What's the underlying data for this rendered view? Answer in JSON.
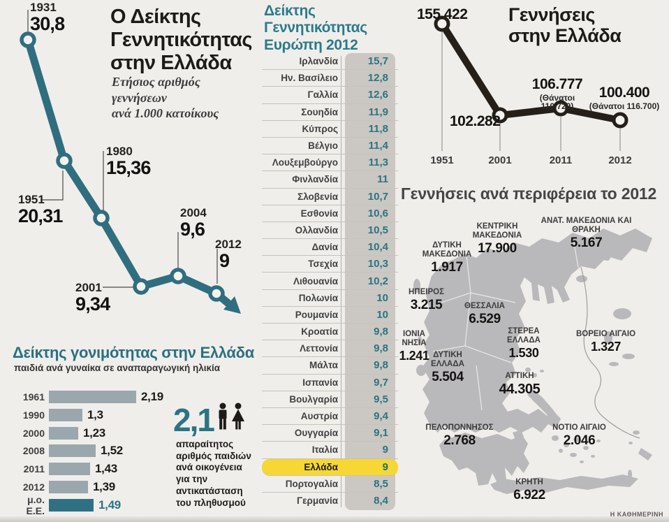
{
  "page": {
    "credit": "Η ΚΑΘΗΜΕΡΙΝΗ"
  },
  "colors": {
    "teal": "#2f6e7f",
    "teal_text": "#2a7484",
    "black_line": "#242019",
    "map_gray": "#b9b9bb",
    "highlight_yellow": "#f6d733",
    "background": "#f0eeeb"
  },
  "birth_rate_chart": {
    "title_lines": [
      "Ο Δείκτης",
      "Γεννητικότητας",
      "στην Ελλάδα"
    ],
    "subtitle_lines": [
      "Ετήσιος αριθμός",
      "γεννήσεων",
      "ανά 1.000 κατοίκους"
    ],
    "points": [
      {
        "year": "1931",
        "value": "30,8"
      },
      {
        "year": "1951",
        "value": "20,31"
      },
      {
        "year": "1980",
        "value": "15,36"
      },
      {
        "year": "2001",
        "value": "9,34"
      },
      {
        "year": "2004",
        "value": "9,6"
      },
      {
        "year": "2012",
        "value": "9"
      }
    ]
  },
  "europe_table": {
    "title_lines": [
      "Δείκτης",
      "Γεννητικότητας",
      "Ευρώπη 2012"
    ],
    "rows": [
      {
        "country": "Ιρλανδία",
        "value": "15,7"
      },
      {
        "country": "Ην. Βασίλειο",
        "value": "12,8"
      },
      {
        "country": "Γαλλία",
        "value": "12,6"
      },
      {
        "country": "Σουηδία",
        "value": "11,9"
      },
      {
        "country": "Κύπρος",
        "value": "11,8"
      },
      {
        "country": "Βέλγιο",
        "value": "11,4"
      },
      {
        "country": "Λουξεμβούργο",
        "value": "11,3"
      },
      {
        "country": "Φινλανδία",
        "value": "11"
      },
      {
        "country": "Σλοβενία",
        "value": "10,7"
      },
      {
        "country": "Εσθονία",
        "value": "10,6"
      },
      {
        "country": "Ολλανδία",
        "value": "10,5"
      },
      {
        "country": "Δανία",
        "value": "10,4"
      },
      {
        "country": "Τσεχία",
        "value": "10,3"
      },
      {
        "country": "Λιθουανία",
        "value": "10,2"
      },
      {
        "country": "Πολωνία",
        "value": "10"
      },
      {
        "country": "Ρουμανία",
        "value": "10"
      },
      {
        "country": "Κροατία",
        "value": "9,8"
      },
      {
        "country": "Λεττονία",
        "value": "9,8"
      },
      {
        "country": "Μάλτα",
        "value": "9,8"
      },
      {
        "country": "Ισπανία",
        "value": "9,7"
      },
      {
        "country": "Βουλγαρία",
        "value": "9,5"
      },
      {
        "country": "Αυστρία",
        "value": "9,4"
      },
      {
        "country": "Ουγγαρία",
        "value": "9,1"
      },
      {
        "country": "Ιταλία",
        "value": "9"
      },
      {
        "country": "Ελλάδα",
        "value": "9",
        "highlight": true
      },
      {
        "country": "Πορτογαλία",
        "value": "8,5"
      },
      {
        "country": "Γερμανία",
        "value": "8,4"
      }
    ]
  },
  "births_chart": {
    "title_lines": [
      "Γεννήσεις",
      "στην Ελλάδα"
    ],
    "points": [
      {
        "year": "1951",
        "value": "155.422",
        "note": ""
      },
      {
        "year": "2001",
        "value": "102.282",
        "note": ""
      },
      {
        "year": "2011",
        "value": "106.777",
        "note": "(Θάνατοι 110.729)"
      },
      {
        "year": "2012",
        "value": "100.400",
        "note": "(Θάνατοι 116.700)"
      }
    ]
  },
  "region_map": {
    "title": "Γεννήσεις ανά περιφέρεια το 2012",
    "regions": [
      {
        "name": "ΚΕΝΤΡΙΚΗ ΜΑΚΕΔΟΝΙΑ",
        "value": "17.900"
      },
      {
        "name": "ΑΝΑΤ. ΜΑΚΕΔΟΝΙΑ ΚΑΙ ΘΡΑΚΗ",
        "value": "5.167"
      },
      {
        "name": "ΔΥΤΙΚΗ ΜΑΚΕΔΟΝΙΑ",
        "value": "1.917"
      },
      {
        "name": "ΗΠΕΙΡΟΣ",
        "value": "3.215"
      },
      {
        "name": "ΘΕΣΣΑΛΙΑ",
        "value": "6.529"
      },
      {
        "name": "ΙΟΝΙΑ ΝΗΣΙΑ",
        "value": "1.241"
      },
      {
        "name": "ΔΥΤΙΚΗ ΕΛΛΑΔΑ",
        "value": "5.504"
      },
      {
        "name": "ΣΤΕΡΕΑ ΕΛΛΑΔΑ",
        "value": "1.530"
      },
      {
        "name": "ΒΟΡΕΙΟ ΑΙΓΑΙΟ",
        "value": "1.327"
      },
      {
        "name": "ΑΤΤΙΚΗ",
        "value": "44.305"
      },
      {
        "name": "ΠΕΛΟΠΟΝΝΗΣΟΣ",
        "value": "2.768"
      },
      {
        "name": "ΝΟΤΙΟ ΑΙΓΑΙΟ",
        "value": "2.046"
      },
      {
        "name": "ΚΡΗΤΗ",
        "value": "6.922"
      }
    ]
  },
  "fertility_chart": {
    "title": "Δείκτης γονιμότητας στην Ελλάδα",
    "subtitle": "παιδιά ανά γυναίκα σε αναπαραγωγική ηλικία",
    "bars": [
      {
        "label": "1961",
        "value": 2.19,
        "display": "2,19"
      },
      {
        "label": "1990",
        "value": 1.3,
        "display": "1,3"
      },
      {
        "label": "2000",
        "value": 1.23,
        "display": "1,23"
      },
      {
        "label": "2008",
        "value": 1.52,
        "display": "1,52"
      },
      {
        "label": "2011",
        "value": 1.43,
        "display": "1,43"
      },
      {
        "label": "2012",
        "value": 1.39,
        "display": "1,39"
      },
      {
        "label": "μ.ο. Ε.Ε.",
        "value": 1.49,
        "display": "1,49",
        "accent": true
      }
    ],
    "replacement": {
      "number": "2,1",
      "icons": "man-woman-icon",
      "text": "απαραίτητος αριθμός παιδιών ανά οικογένεια για την αντικατάσταση του πληθυσμού"
    }
  },
  "chart_data": [
    {
      "type": "line",
      "title": "Ο Δείκτης Γεννητικότητας στην Ελλάδα",
      "subtitle": "Ετήσιος αριθμός γεννήσεων ανά 1.000 κατοίκους",
      "x": [
        "1931",
        "1951",
        "1980",
        "2001",
        "2004",
        "2012"
      ],
      "values": [
        30.8,
        20.31,
        15.36,
        9.34,
        9.6,
        9
      ],
      "ylim": [
        0,
        32
      ],
      "grid": false,
      "legend_position": "none"
    },
    {
      "type": "table",
      "title": "Δείκτης Γεννητικότητας Ευρώπη 2012",
      "categories": [
        "Ιρλανδία",
        "Ην. Βασίλειο",
        "Γαλλία",
        "Σουηδία",
        "Κύπρος",
        "Βέλγιο",
        "Λουξεμβούργο",
        "Φινλανδία",
        "Σλοβενία",
        "Εσθονία",
        "Ολλανδία",
        "Δανία",
        "Τσεχία",
        "Λιθουανία",
        "Πολωνία",
        "Ρουμανία",
        "Κροατία",
        "Λεττονία",
        "Μάλτα",
        "Ισπανία",
        "Βουλγαρία",
        "Αυστρία",
        "Ουγγαρία",
        "Ιταλία",
        "Ελλάδα",
        "Πορτογαλία",
        "Γερμανία"
      ],
      "values": [
        15.7,
        12.8,
        12.6,
        11.9,
        11.8,
        11.4,
        11.3,
        11,
        10.7,
        10.6,
        10.5,
        10.4,
        10.3,
        10.2,
        10,
        10,
        9.8,
        9.8,
        9.8,
        9.7,
        9.5,
        9.4,
        9.1,
        9,
        9,
        8.5,
        8.4
      ],
      "highlighted_row": "Ελλάδα"
    },
    {
      "type": "line",
      "title": "Γεννήσεις στην Ελλάδα",
      "x": [
        "1951",
        "2001",
        "2011",
        "2012"
      ],
      "values": [
        155422,
        102282,
        106777,
        100400
      ],
      "annotations": [
        "",
        "",
        "Θάνατοι 110.729",
        "Θάνατοι 116.700"
      ],
      "grid": false,
      "legend_position": "none"
    },
    {
      "type": "heatmap",
      "title": "Γεννήσεις ανά περιφέρεια το 2012",
      "categories": [
        "ΚΕΝΤΡΙΚΗ ΜΑΚΕΔΟΝΙΑ",
        "ΑΝΑΤ. ΜΑΚΕΔΟΝΙΑ ΚΑΙ ΘΡΑΚΗ",
        "ΔΥΤΙΚΗ ΜΑΚΕΔΟΝΙΑ",
        "ΗΠΕΙΡΟΣ",
        "ΘΕΣΣΑΛΙΑ",
        "ΙΟΝΙΑ ΝΗΣΙΑ",
        "ΔΥΤΙΚΗ ΕΛΛΑΔΑ",
        "ΣΤΕΡΕΑ ΕΛΛΑΔΑ",
        "ΒΟΡΕΙΟ ΑΙΓΑΙΟ",
        "ΑΤΤΙΚΗ",
        "ΠΕΛΟΠΟΝΝΗΣΟΣ",
        "ΝΟΤΙΟ ΑΙΓΑΙΟ",
        "ΚΡΗΤΗ"
      ],
      "values": [
        17900,
        5167,
        1917,
        3215,
        6529,
        1241,
        5504,
        1530,
        1327,
        44305,
        2768,
        2046,
        6922
      ],
      "note": "values shown on a map of Greece"
    },
    {
      "type": "bar",
      "title": "Δείκτης γονιμότητας στην Ελλάδα",
      "subtitle": "παιδιά ανά γυναίκα σε αναπαραγωγική ηλικία",
      "categories": [
        "1961",
        "1990",
        "2000",
        "2008",
        "2011",
        "2012",
        "μ.ο. Ε.Ε."
      ],
      "values": [
        2.19,
        1.3,
        1.23,
        1.52,
        1.43,
        1.39,
        1.49
      ],
      "annotation": "2,1 απαραίτητος αριθμός παιδιών ανά οικογένεια για την αντικατάσταση του πληθυσμού",
      "orientation": "horizontal",
      "grid": false
    }
  ]
}
